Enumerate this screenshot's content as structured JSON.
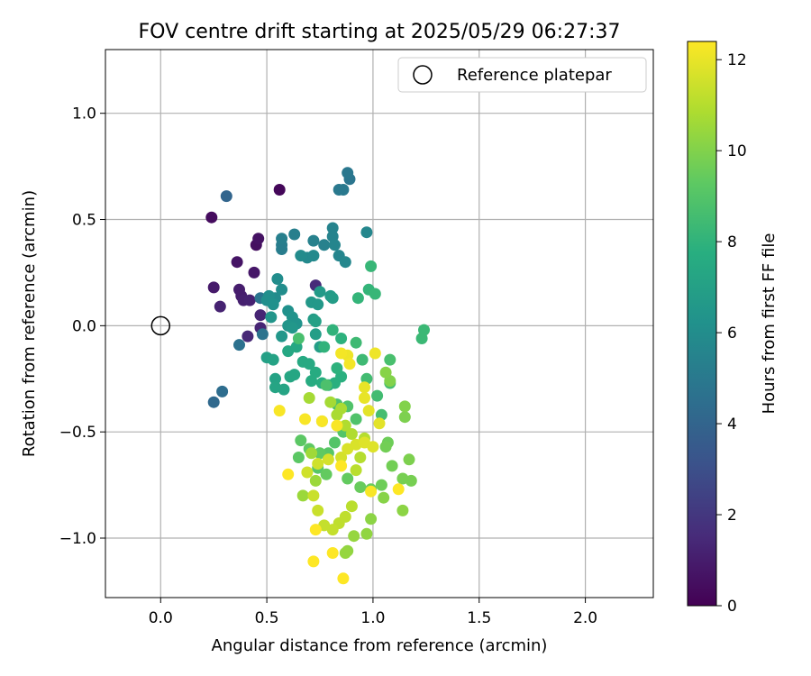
{
  "chart_data": {
    "type": "scatter",
    "title": "FOV centre drift starting at 2025/05/29 06:27:37",
    "xlabel": "Angular distance from reference (arcmin)",
    "ylabel": "Rotation from reference (arcmin)",
    "xlim": [
      -0.26,
      2.32
    ],
    "ylim": [
      -1.28,
      1.3
    ],
    "x_ticks": [
      {
        "value": 0.0,
        "label": "0.0"
      },
      {
        "value": 0.5,
        "label": "0.5"
      },
      {
        "value": 1.0,
        "label": "1.0"
      },
      {
        "value": 1.5,
        "label": "1.5"
      },
      {
        "value": 2.0,
        "label": "2.0"
      }
    ],
    "y_ticks": [
      {
        "value": 1.0,
        "label": "1.0"
      },
      {
        "value": 0.5,
        "label": "0.5"
      },
      {
        "value": 0.0,
        "label": "0.0"
      },
      {
        "value": -0.5,
        "label": "−0.5"
      },
      {
        "value": -1.0,
        "label": "−1.0"
      }
    ],
    "grid": true,
    "legend": {
      "placement": "top-right",
      "entries": [
        "Reference platepar"
      ]
    },
    "reference_point": {
      "x": 0.0,
      "y": 0.0
    },
    "colorbar": {
      "label": "Hours from first FF file",
      "colormap": "viridis",
      "range": [
        0,
        12.4
      ],
      "ticks": [
        {
          "value": 0,
          "label": "0"
        },
        {
          "value": 2,
          "label": "2"
        },
        {
          "value": 4,
          "label": "4"
        },
        {
          "value": 6,
          "label": "6"
        },
        {
          "value": 8,
          "label": "8"
        },
        {
          "value": 10,
          "label": "10"
        },
        {
          "value": 12,
          "label": "12"
        }
      ]
    },
    "points": [
      [
        0.56,
        0.64,
        0.2
      ],
      [
        0.24,
        0.51,
        0.4
      ],
      [
        0.45,
        0.38,
        0.5
      ],
      [
        0.46,
        0.41,
        0.6
      ],
      [
        0.36,
        0.3,
        0.7
      ],
      [
        0.44,
        0.25,
        0.8
      ],
      [
        0.25,
        0.18,
        0.9
      ],
      [
        0.37,
        0.17,
        1.0
      ],
      [
        0.38,
        0.14,
        1.0
      ],
      [
        0.39,
        0.12,
        1.1
      ],
      [
        0.28,
        0.09,
        1.2
      ],
      [
        0.42,
        0.12,
        1.2
      ],
      [
        0.47,
        0.05,
        1.3
      ],
      [
        0.47,
        -0.01,
        1.3
      ],
      [
        0.41,
        -0.05,
        1.4
      ],
      [
        0.73,
        0.19,
        1.5
      ],
      [
        0.31,
        0.61,
        4.0
      ],
      [
        0.25,
        -0.36,
        4.2
      ],
      [
        0.29,
        -0.31,
        4.4
      ],
      [
        0.37,
        -0.09,
        4.6
      ],
      [
        0.48,
        -0.04,
        4.7
      ],
      [
        0.47,
        0.13,
        4.8
      ],
      [
        0.89,
        0.69,
        4.8
      ],
      [
        0.88,
        0.72,
        4.9
      ],
      [
        0.86,
        0.64,
        5.0
      ],
      [
        0.84,
        0.64,
        5.0
      ],
      [
        0.57,
        0.38,
        5.2
      ],
      [
        0.57,
        0.36,
        5.2
      ],
      [
        0.57,
        0.41,
        5.3
      ],
      [
        0.63,
        0.43,
        5.3
      ],
      [
        0.72,
        0.4,
        5.4
      ],
      [
        0.77,
        0.38,
        5.4
      ],
      [
        0.81,
        0.46,
        5.5
      ],
      [
        0.81,
        0.42,
        5.5
      ],
      [
        0.82,
        0.38,
        5.6
      ],
      [
        0.84,
        0.33,
        5.6
      ],
      [
        0.87,
        0.3,
        5.7
      ],
      [
        0.97,
        0.44,
        5.7
      ],
      [
        0.69,
        0.32,
        5.8
      ],
      [
        0.72,
        0.33,
        5.8
      ],
      [
        0.66,
        0.33,
        5.9
      ],
      [
        0.54,
        0.13,
        5.9
      ],
      [
        0.55,
        0.22,
        6.0
      ],
      [
        0.57,
        0.17,
        6.0
      ],
      [
        0.51,
        0.14,
        6.1
      ],
      [
        0.5,
        0.12,
        6.1
      ],
      [
        0.53,
        0.1,
        6.2
      ],
      [
        0.6,
        0.07,
        6.2
      ],
      [
        0.62,
        0.04,
        6.3
      ],
      [
        0.64,
        0.01,
        6.3
      ],
      [
        0.6,
        0.0,
        6.4
      ],
      [
        0.52,
        0.04,
        6.4
      ],
      [
        0.57,
        -0.05,
        6.5
      ],
      [
        0.62,
        -0.01,
        6.5
      ],
      [
        0.71,
        0.11,
        6.6
      ],
      [
        0.74,
        0.1,
        6.6
      ],
      [
        0.75,
        0.16,
        6.7
      ],
      [
        0.8,
        0.14,
        6.7
      ],
      [
        0.81,
        0.13,
        6.8
      ],
      [
        0.72,
        0.03,
        6.8
      ],
      [
        0.73,
        -0.04,
        6.9
      ],
      [
        0.75,
        -0.1,
        6.9
      ],
      [
        0.73,
        0.02,
        7.0
      ],
      [
        0.5,
        -0.15,
        7.0
      ],
      [
        0.53,
        -0.16,
        7.1
      ],
      [
        0.54,
        -0.25,
        7.1
      ],
      [
        0.54,
        -0.29,
        7.2
      ],
      [
        0.58,
        -0.3,
        7.2
      ],
      [
        0.61,
        -0.24,
        7.3
      ],
      [
        0.63,
        -0.23,
        7.3
      ],
      [
        0.6,
        -0.12,
        7.4
      ],
      [
        0.64,
        -0.1,
        7.4
      ],
      [
        0.67,
        -0.17,
        7.5
      ],
      [
        0.7,
        -0.18,
        7.5
      ],
      [
        0.71,
        -0.26,
        7.6
      ],
      [
        0.73,
        -0.22,
        7.6
      ],
      [
        0.76,
        -0.27,
        7.7
      ],
      [
        0.79,
        -0.28,
        7.7
      ],
      [
        0.82,
        -0.27,
        7.8
      ],
      [
        0.85,
        -0.24,
        7.8
      ],
      [
        0.83,
        -0.2,
        7.9
      ],
      [
        0.85,
        -0.06,
        7.9
      ],
      [
        0.81,
        -0.02,
        8.0
      ],
      [
        0.77,
        -0.1,
        8.0
      ],
      [
        0.93,
        0.13,
        8.1
      ],
      [
        0.98,
        0.17,
        8.1
      ],
      [
        1.01,
        0.15,
        8.2
      ],
      [
        0.99,
        0.28,
        8.2
      ],
      [
        1.24,
        -0.02,
        8.3
      ],
      [
        1.23,
        -0.06,
        8.3
      ],
      [
        0.92,
        -0.08,
        8.4
      ],
      [
        0.95,
        -0.16,
        8.4
      ],
      [
        0.97,
        -0.25,
        8.5
      ],
      [
        1.02,
        -0.33,
        8.5
      ],
      [
        1.04,
        -0.42,
        8.6
      ],
      [
        1.08,
        -0.27,
        8.6
      ],
      [
        1.08,
        -0.16,
        8.7
      ],
      [
        0.65,
        -0.06,
        8.7
      ],
      [
        0.78,
        -0.28,
        8.8
      ],
      [
        0.83,
        -0.37,
        8.8
      ],
      [
        0.88,
        -0.38,
        8.9
      ],
      [
        0.92,
        -0.44,
        8.9
      ],
      [
        0.86,
        -0.5,
        9.0
      ],
      [
        0.82,
        -0.55,
        9.0
      ],
      [
        0.79,
        -0.6,
        9.1
      ],
      [
        0.74,
        -0.67,
        9.1
      ],
      [
        0.65,
        -0.62,
        9.2
      ],
      [
        0.66,
        -0.54,
        9.2
      ],
      [
        0.7,
        -0.58,
        9.3
      ],
      [
        0.75,
        -0.6,
        9.3
      ],
      [
        0.78,
        -0.7,
        9.4
      ],
      [
        0.88,
        -0.72,
        9.4
      ],
      [
        0.94,
        -0.76,
        9.5
      ],
      [
        0.99,
        -0.77,
        9.5
      ],
      [
        1.04,
        -0.75,
        9.6
      ],
      [
        1.07,
        -0.55,
        9.6
      ],
      [
        1.06,
        -0.57,
        9.7
      ],
      [
        1.09,
        -0.66,
        9.7
      ],
      [
        1.14,
        -0.72,
        9.8
      ],
      [
        1.18,
        -0.73,
        9.8
      ],
      [
        1.17,
        -0.63,
        9.9
      ],
      [
        1.15,
        -0.43,
        9.9
      ],
      [
        1.15,
        -0.38,
        10.0
      ],
      [
        1.08,
        -0.26,
        10.0
      ],
      [
        1.06,
        -0.22,
        10.1
      ],
      [
        1.05,
        -0.81,
        10.1
      ],
      [
        1.14,
        -0.87,
        10.2
      ],
      [
        0.99,
        -0.91,
        10.2
      ],
      [
        0.97,
        -0.98,
        10.3
      ],
      [
        0.88,
        -1.06,
        10.3
      ],
      [
        0.87,
        -1.07,
        10.4
      ],
      [
        0.91,
        -0.99,
        10.4
      ],
      [
        0.67,
        -0.8,
        10.5
      ],
      [
        0.73,
        -0.73,
        10.5
      ],
      [
        0.71,
        -0.6,
        10.6
      ],
      [
        0.76,
        -0.45,
        10.6
      ],
      [
        0.7,
        -0.34,
        10.7
      ],
      [
        0.8,
        -0.36,
        10.7
      ],
      [
        0.83,
        -0.42,
        10.8
      ],
      [
        0.85,
        -0.39,
        10.8
      ],
      [
        0.87,
        -0.47,
        10.9
      ],
      [
        0.9,
        -0.51,
        10.9
      ],
      [
        0.96,
        -0.53,
        11.0
      ],
      [
        0.94,
        -0.62,
        11.0
      ],
      [
        0.92,
        -0.68,
        11.1
      ],
      [
        0.9,
        -0.85,
        11.1
      ],
      [
        0.87,
        -0.9,
        11.2
      ],
      [
        0.84,
        -0.93,
        11.2
      ],
      [
        0.81,
        -0.96,
        11.3
      ],
      [
        0.77,
        -0.94,
        11.3
      ],
      [
        0.74,
        -0.87,
        11.4
      ],
      [
        0.72,
        -0.8,
        11.4
      ],
      [
        0.69,
        -0.69,
        11.5
      ],
      [
        0.74,
        -0.65,
        11.5
      ],
      [
        0.79,
        -0.63,
        11.6
      ],
      [
        0.85,
        -0.62,
        11.6
      ],
      [
        0.88,
        -0.58,
        11.7
      ],
      [
        0.92,
        -0.56,
        11.7
      ],
      [
        0.96,
        -0.55,
        11.8
      ],
      [
        1.0,
        -0.57,
        11.8
      ],
      [
        1.03,
        -0.46,
        11.9
      ],
      [
        0.98,
        -0.4,
        11.9
      ],
      [
        0.96,
        -0.34,
        12.0
      ],
      [
        0.96,
        -0.29,
        12.0
      ],
      [
        1.01,
        -0.13,
        12.1
      ],
      [
        0.88,
        -0.14,
        12.1
      ],
      [
        0.89,
        -0.18,
        12.2
      ],
      [
        0.85,
        -0.13,
        12.2
      ],
      [
        0.56,
        -0.4,
        12.3
      ],
      [
        0.68,
        -0.44,
        12.3
      ],
      [
        0.76,
        -0.45,
        12.3
      ],
      [
        0.83,
        -0.47,
        12.3
      ],
      [
        0.99,
        -0.78,
        12.3
      ],
      [
        1.12,
        -0.77,
        12.4
      ],
      [
        0.81,
        -1.07,
        12.4
      ],
      [
        0.86,
        -1.19,
        12.4
      ],
      [
        0.72,
        -1.11,
        12.4
      ],
      [
        0.73,
        -0.96,
        12.4
      ],
      [
        0.6,
        -0.7,
        12.4
      ],
      [
        0.85,
        -0.66,
        12.4
      ]
    ]
  }
}
